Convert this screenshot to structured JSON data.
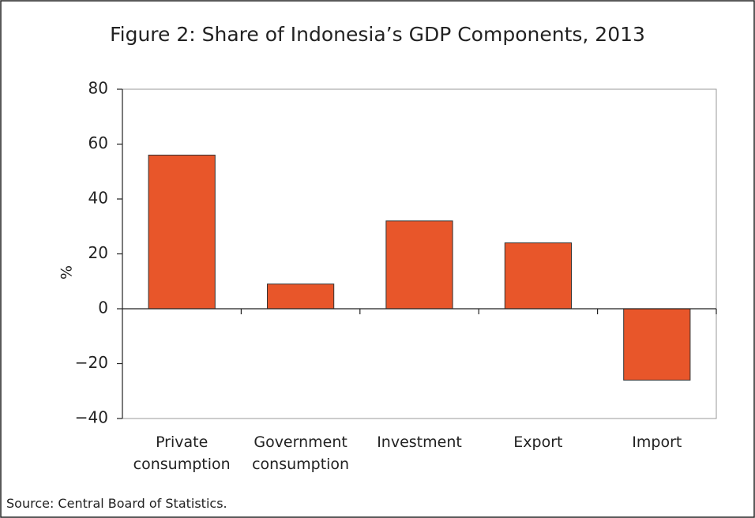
{
  "chart_data": {
    "type": "bar",
    "title": "Figure 2: Share of Indonesia’s GDP Components, 2013",
    "y_label": "%",
    "categories": [
      "Private consumption",
      "Government consumption",
      "Investment",
      "Export",
      "Import"
    ],
    "values": [
      56,
      9,
      32,
      24,
      -26
    ],
    "color": "#e8562a",
    "ylim": [
      -40,
      80
    ],
    "yticks": [
      {
        "value": -40,
        "label": "−40"
      },
      {
        "value": -20,
        "label": "−20"
      },
      0,
      20,
      40,
      60,
      80
    ],
    "source": "Source: Central Board of Statistics."
  }
}
